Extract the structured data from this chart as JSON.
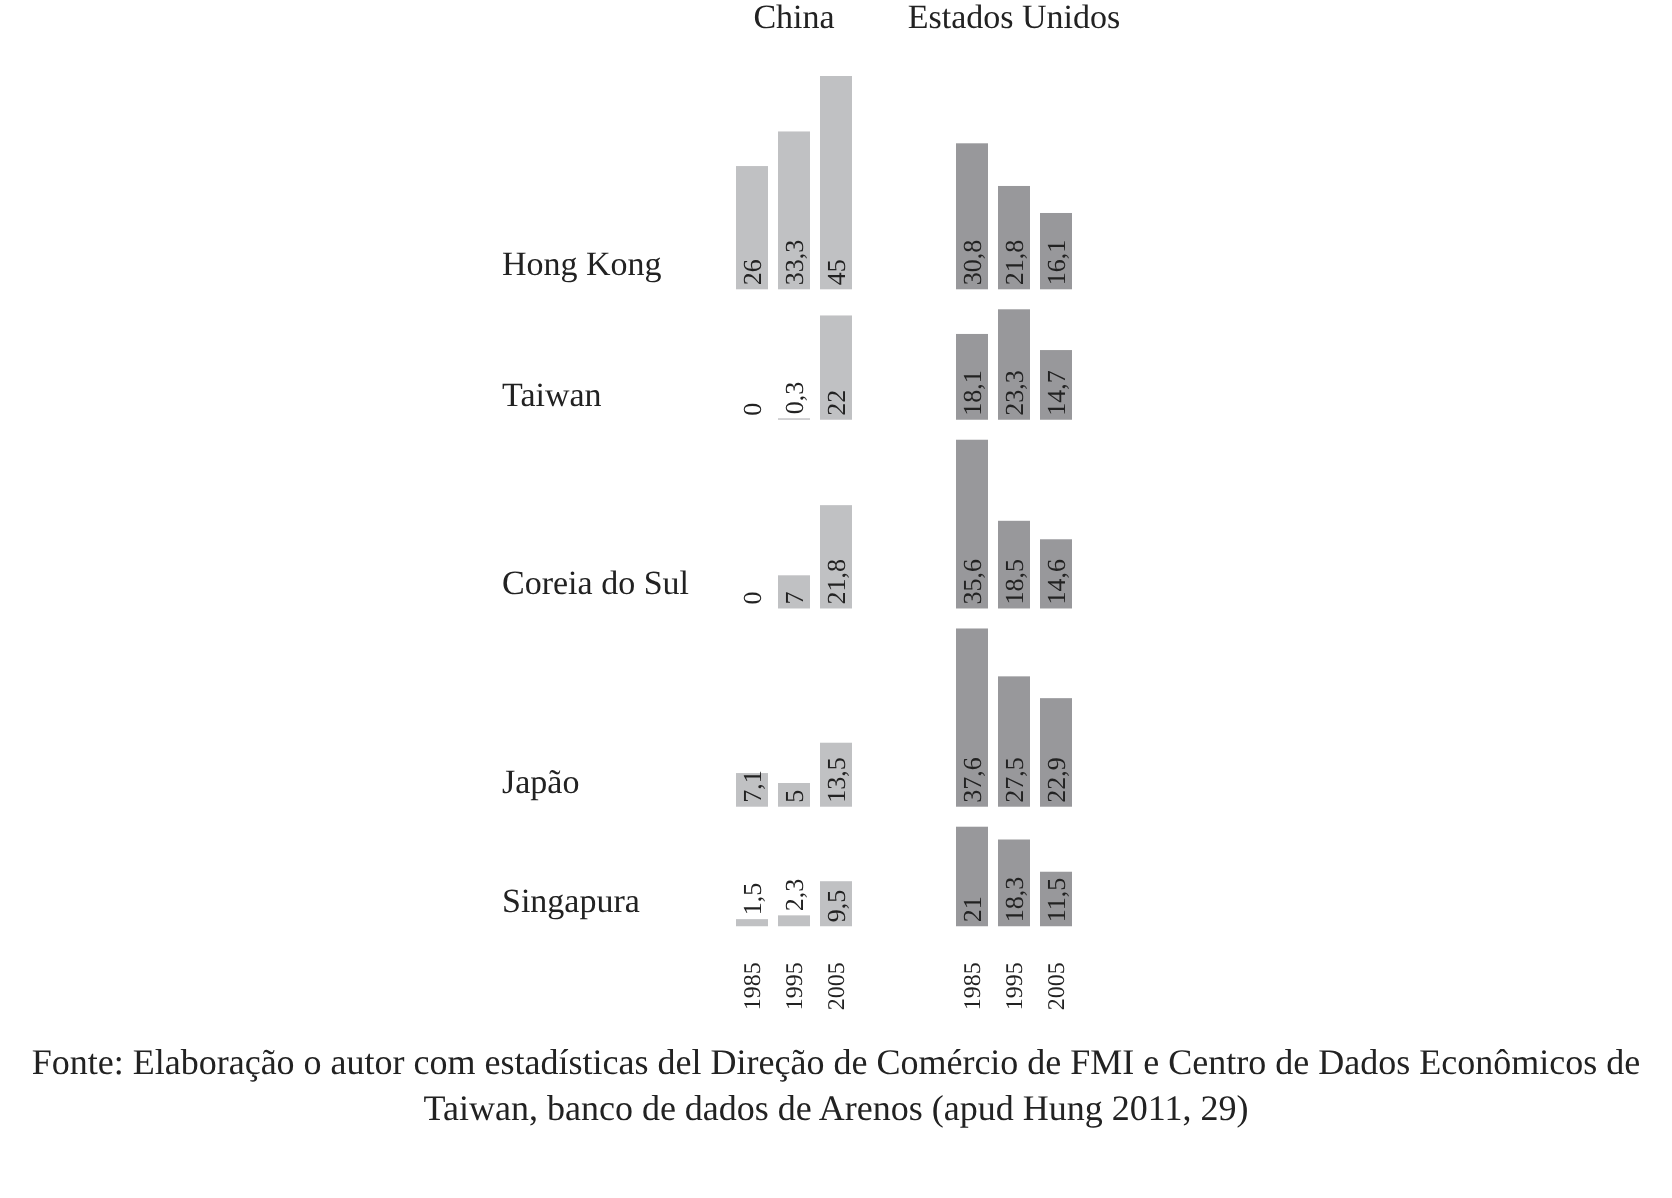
{
  "chart_data": [
    {
      "type": "bar",
      "title": "China",
      "ylabel": "Hong Kong",
      "categories": [
        "1985",
        "1995",
        "2005"
      ],
      "values": [
        26,
        33.3,
        45
      ],
      "value_labels": [
        "26",
        "33,3",
        "45"
      ],
      "color": "#c0c1c3",
      "tick_labels": false
    },
    {
      "type": "bar",
      "title": "Estados Unidos",
      "categories": [
        "1985",
        "1995",
        "2005"
      ],
      "values": [
        30.8,
        21.8,
        16.1
      ],
      "value_labels": [
        "30,8",
        "21,8",
        "16,1"
      ],
      "color": "#98989b",
      "tick_labels": false
    },
    {
      "type": "bar",
      "ylabel": "Taiwan",
      "categories": [
        "1985",
        "1995",
        "2005"
      ],
      "values": [
        0,
        0.3,
        22
      ],
      "value_labels": [
        "0",
        "0,3",
        "22"
      ],
      "color": "#c0c1c3",
      "tick_labels": false
    },
    {
      "type": "bar",
      "categories": [
        "1985",
        "1995",
        "2005"
      ],
      "values": [
        18.1,
        23.3,
        14.7
      ],
      "value_labels": [
        "18,1",
        "23,3",
        "14,7"
      ],
      "color": "#98989b",
      "tick_labels": false
    },
    {
      "type": "bar",
      "ylabel": "Coreia do Sul",
      "categories": [
        "1985",
        "1995",
        "2005"
      ],
      "values": [
        0,
        7,
        21.8
      ],
      "value_labels": [
        "0",
        "7",
        "21,8"
      ],
      "color": "#c0c1c3",
      "tick_labels": false
    },
    {
      "type": "bar",
      "categories": [
        "1985",
        "1995",
        "2005"
      ],
      "values": [
        35.6,
        18.5,
        14.6
      ],
      "value_labels": [
        "35,6",
        "18,5",
        "14,6"
      ],
      "color": "#98989b",
      "tick_labels": false
    },
    {
      "type": "bar",
      "ylabel": "Japão",
      "categories": [
        "1985",
        "1995",
        "2005"
      ],
      "values": [
        7.1,
        5,
        13.5
      ],
      "value_labels": [
        "7,1",
        "5",
        "13,5"
      ],
      "color": "#c0c1c3",
      "tick_labels": false
    },
    {
      "type": "bar",
      "categories": [
        "1985",
        "1995",
        "2005"
      ],
      "values": [
        37.6,
        27.5,
        22.9
      ],
      "value_labels": [
        "37,6",
        "27,5",
        "22,9"
      ],
      "color": "#98989b",
      "tick_labels": false
    },
    {
      "type": "bar",
      "ylabel": "Singapura",
      "categories": [
        "1985",
        "1995",
        "2005"
      ],
      "values": [
        1.5,
        2.3,
        9.5
      ],
      "value_labels": [
        "1,5",
        "2,3",
        "9,5"
      ],
      "color": "#c0c1c3",
      "tick_labels": "x"
    },
    {
      "type": "bar",
      "categories": [
        "1985",
        "1995",
        "2005"
      ],
      "values": [
        21,
        18.3,
        11.5
      ],
      "value_labels": [
        "21",
        "18,3",
        "11,5"
      ],
      "color": "#98989b",
      "tick_labels": "x",
      "annotations": [
        "Fonte: Elaboração o autor com estadísticas del Direção de Comércio de FMI e Centro de Dados Econômicos de Taiwan, banco de dados de Arenos (apud Hung 2011, 29)"
      ]
    }
  ]
}
